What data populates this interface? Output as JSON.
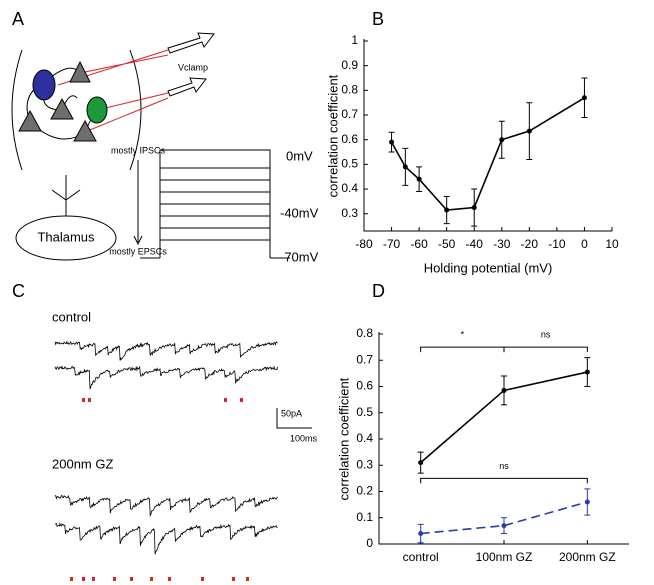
{
  "panel_labels": [
    "A",
    "B",
    "C",
    "D"
  ],
  "diagram": {
    "vclamp": "Vclamp",
    "top_label": "mostly IPSCs",
    "bottom_label": "mostly EPSCs",
    "levels": [
      "0mV",
      "-40mV",
      "-70mV"
    ],
    "thalamus": "Thalamus"
  },
  "traces": {
    "conditions": [
      "control",
      "200nm GZ"
    ],
    "scale_y": "50pA",
    "scale_x": "100ms"
  },
  "chart_data": [
    {
      "type": "line",
      "xlabel": "Holding potential (mV)",
      "ylabel": "correlation coefficient",
      "x": [
        -70,
        -65,
        -60,
        -50,
        -40,
        -30,
        -20,
        0
      ],
      "series": [
        {
          "color": "#000000",
          "values": [
            0.59,
            0.49,
            0.44,
            0.315,
            0.325,
            0.6,
            0.635,
            0.77
          ],
          "errors": [
            0.04,
            0.075,
            0.05,
            0.055,
            0.075,
            0.075,
            0.115,
            0.08
          ]
        }
      ],
      "xlim": [
        -80,
        10
      ],
      "xticks": [
        -80,
        -70,
        -60,
        -50,
        -40,
        -30,
        -20,
        -10,
        0,
        10
      ],
      "ylim": [
        0.23,
        1
      ],
      "yticks": [
        0.3,
        0.4,
        0.5,
        0.6,
        0.7,
        0.8,
        0.9,
        1
      ]
    },
    {
      "type": "line",
      "ylabel": "correlation coefficient",
      "categories": [
        "control",
        "100nm GZ",
        "200nm GZ"
      ],
      "series": [
        {
          "color": "#000000",
          "line_style": "solid",
          "values": [
            0.31,
            0.585,
            0.655
          ],
          "errors": [
            0.04,
            0.055,
            0.055
          ]
        },
        {
          "color": "#2b3bb0",
          "line_style": "dashed",
          "values": [
            0.04,
            0.07,
            0.16
          ],
          "errors": [
            0.035,
            0.03,
            0.05
          ]
        }
      ],
      "ylim": [
        0,
        0.8
      ],
      "yticks": [
        0,
        0.1,
        0.2,
        0.3,
        0.4,
        0.5,
        0.6,
        0.7,
        0.8
      ],
      "annotations": [
        "*",
        "ns",
        "ns"
      ]
    }
  ]
}
